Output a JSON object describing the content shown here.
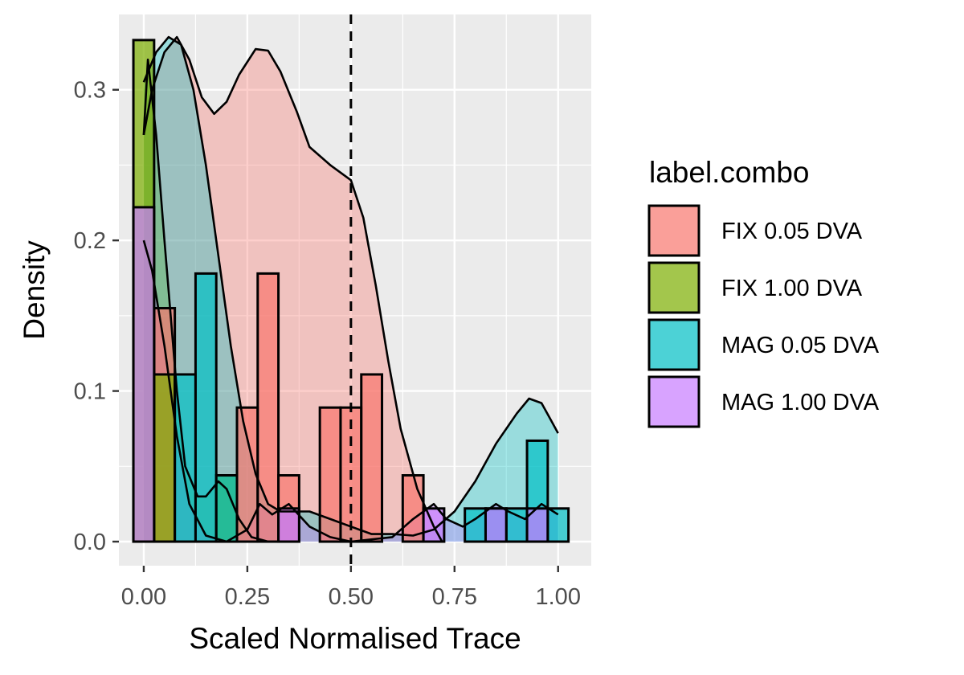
{
  "chart_data": {
    "type": "histogram+density",
    "xlabel": "Scaled Normalised Trace",
    "ylabel": "Density",
    "xlim": [
      -0.06,
      1.08
    ],
    "ylim": [
      -0.016,
      0.35
    ],
    "x_ticks": [
      0.0,
      0.25,
      0.5,
      0.75,
      1.0
    ],
    "x_tick_labels": [
      "0.00",
      "0.25",
      "0.50",
      "0.75",
      "1.00"
    ],
    "y_ticks": [
      0.0,
      0.1,
      0.2,
      0.3
    ],
    "y_tick_labels": [
      "0.0",
      "0.1",
      "0.2",
      "0.3"
    ],
    "grid": true,
    "panel_background": "#ebebeb",
    "vline": {
      "x": 0.5,
      "style": "dashed",
      "color": "#000000"
    },
    "bin_width": 0.05,
    "legend": {
      "title": "label.combo",
      "position": "right"
    },
    "series": [
      {
        "name": "FIX 0.05 DVA",
        "color": "#f8766d",
        "bins": [
          {
            "x": 0.05,
            "y": 0.155
          },
          {
            "x": 0.25,
            "y": 0.089
          },
          {
            "x": 0.3,
            "y": 0.178
          },
          {
            "x": 0.35,
            "y": 0.044
          },
          {
            "x": 0.45,
            "y": 0.089
          },
          {
            "x": 0.5,
            "y": 0.089
          },
          {
            "x": 0.55,
            "y": 0.111
          },
          {
            "x": 0.65,
            "y": 0.044
          }
        ],
        "density": [
          [
            0.0,
            0.27
          ],
          [
            0.02,
            0.3
          ],
          [
            0.05,
            0.325
          ],
          [
            0.08,
            0.335
          ],
          [
            0.11,
            0.32
          ],
          [
            0.14,
            0.295
          ],
          [
            0.17,
            0.284
          ],
          [
            0.2,
            0.292
          ],
          [
            0.23,
            0.31
          ],
          [
            0.27,
            0.327
          ],
          [
            0.3,
            0.326
          ],
          [
            0.33,
            0.312
          ],
          [
            0.37,
            0.285
          ],
          [
            0.4,
            0.262
          ],
          [
            0.45,
            0.25
          ],
          [
            0.5,
            0.24
          ],
          [
            0.53,
            0.215
          ],
          [
            0.56,
            0.17
          ],
          [
            0.59,
            0.12
          ],
          [
            0.62,
            0.075
          ],
          [
            0.66,
            0.035
          ],
          [
            0.7,
            0.01
          ],
          [
            0.72,
            0.0
          ]
        ]
      },
      {
        "name": "FIX 1.00 DVA",
        "color": "#7cae00",
        "bins": [
          {
            "x": 0.0,
            "y": 0.333
          },
          {
            "x": 0.05,
            "y": 0.111
          },
          {
            "x": 0.2,
            "y": 0.044
          }
        ],
        "density": [
          [
            0.0,
            0.27
          ],
          [
            0.01,
            0.32
          ],
          [
            0.03,
            0.27
          ],
          [
            0.05,
            0.2
          ],
          [
            0.08,
            0.1
          ],
          [
            0.1,
            0.05
          ],
          [
            0.13,
            0.03
          ],
          [
            0.15,
            0.03
          ],
          [
            0.18,
            0.04
          ],
          [
            0.2,
            0.035
          ],
          [
            0.23,
            0.015
          ],
          [
            0.26,
            0.003
          ],
          [
            0.3,
            0.0
          ]
        ]
      },
      {
        "name": "MAG 0.05 DVA",
        "color": "#00bfc4",
        "bins": [
          {
            "x": 0.1,
            "y": 0.111
          },
          {
            "x": 0.15,
            "y": 0.178
          },
          {
            "x": 0.2,
            "y": 0.044
          },
          {
            "x": 0.8,
            "y": 0.022
          },
          {
            "x": 0.85,
            "y": 0.022
          },
          {
            "x": 0.9,
            "y": 0.022
          },
          {
            "x": 0.95,
            "y": 0.067
          },
          {
            "x": 1.0,
            "y": 0.022
          }
        ],
        "density": [
          [
            0.0,
            0.305
          ],
          [
            0.03,
            0.325
          ],
          [
            0.06,
            0.335
          ],
          [
            0.09,
            0.33
          ],
          [
            0.12,
            0.3
          ],
          [
            0.15,
            0.25
          ],
          [
            0.18,
            0.19
          ],
          [
            0.21,
            0.13
          ],
          [
            0.24,
            0.08
          ],
          [
            0.27,
            0.045
          ],
          [
            0.3,
            0.025
          ],
          [
            0.33,
            0.02
          ],
          [
            0.36,
            0.02
          ],
          [
            0.4,
            0.02
          ],
          [
            0.45,
            0.015
          ],
          [
            0.5,
            0.01
          ],
          [
            0.55,
            0.005
          ],
          [
            0.6,
            0.005
          ],
          [
            0.65,
            0.004
          ],
          [
            0.7,
            0.008
          ],
          [
            0.75,
            0.02
          ],
          [
            0.8,
            0.04
          ],
          [
            0.85,
            0.065
          ],
          [
            0.9,
            0.085
          ],
          [
            0.93,
            0.095
          ],
          [
            0.96,
            0.092
          ],
          [
            0.98,
            0.082
          ],
          [
            1.0,
            0.072
          ]
        ]
      },
      {
        "name": "MAG 1.00 DVA",
        "color": "#c77cff",
        "bins": [
          {
            "x": 0.0,
            "y": 0.222
          },
          {
            "x": 0.35,
            "y": 0.022
          },
          {
            "x": 0.7,
            "y": 0.022
          },
          {
            "x": 0.85,
            "y": 0.022
          },
          {
            "x": 0.95,
            "y": 0.022
          }
        ],
        "density": [
          [
            0.0,
            0.2
          ],
          [
            0.02,
            0.18
          ],
          [
            0.05,
            0.13
          ],
          [
            0.08,
            0.07
          ],
          [
            0.11,
            0.025
          ],
          [
            0.15,
            0.004
          ],
          [
            0.2,
            0.0
          ],
          [
            0.25,
            0.008
          ],
          [
            0.28,
            0.025
          ],
          [
            0.31,
            0.018
          ],
          [
            0.35,
            0.025
          ],
          [
            0.4,
            0.01
          ],
          [
            0.45,
            0.003
          ],
          [
            0.5,
            0.0
          ],
          [
            0.6,
            0.003
          ],
          [
            0.65,
            0.015
          ],
          [
            0.7,
            0.025
          ],
          [
            0.73,
            0.015
          ],
          [
            0.77,
            0.01
          ],
          [
            0.8,
            0.015
          ],
          [
            0.85,
            0.025
          ],
          [
            0.88,
            0.02
          ],
          [
            0.92,
            0.015
          ],
          [
            0.96,
            0.025
          ],
          [
            1.0,
            0.018
          ]
        ]
      }
    ]
  }
}
